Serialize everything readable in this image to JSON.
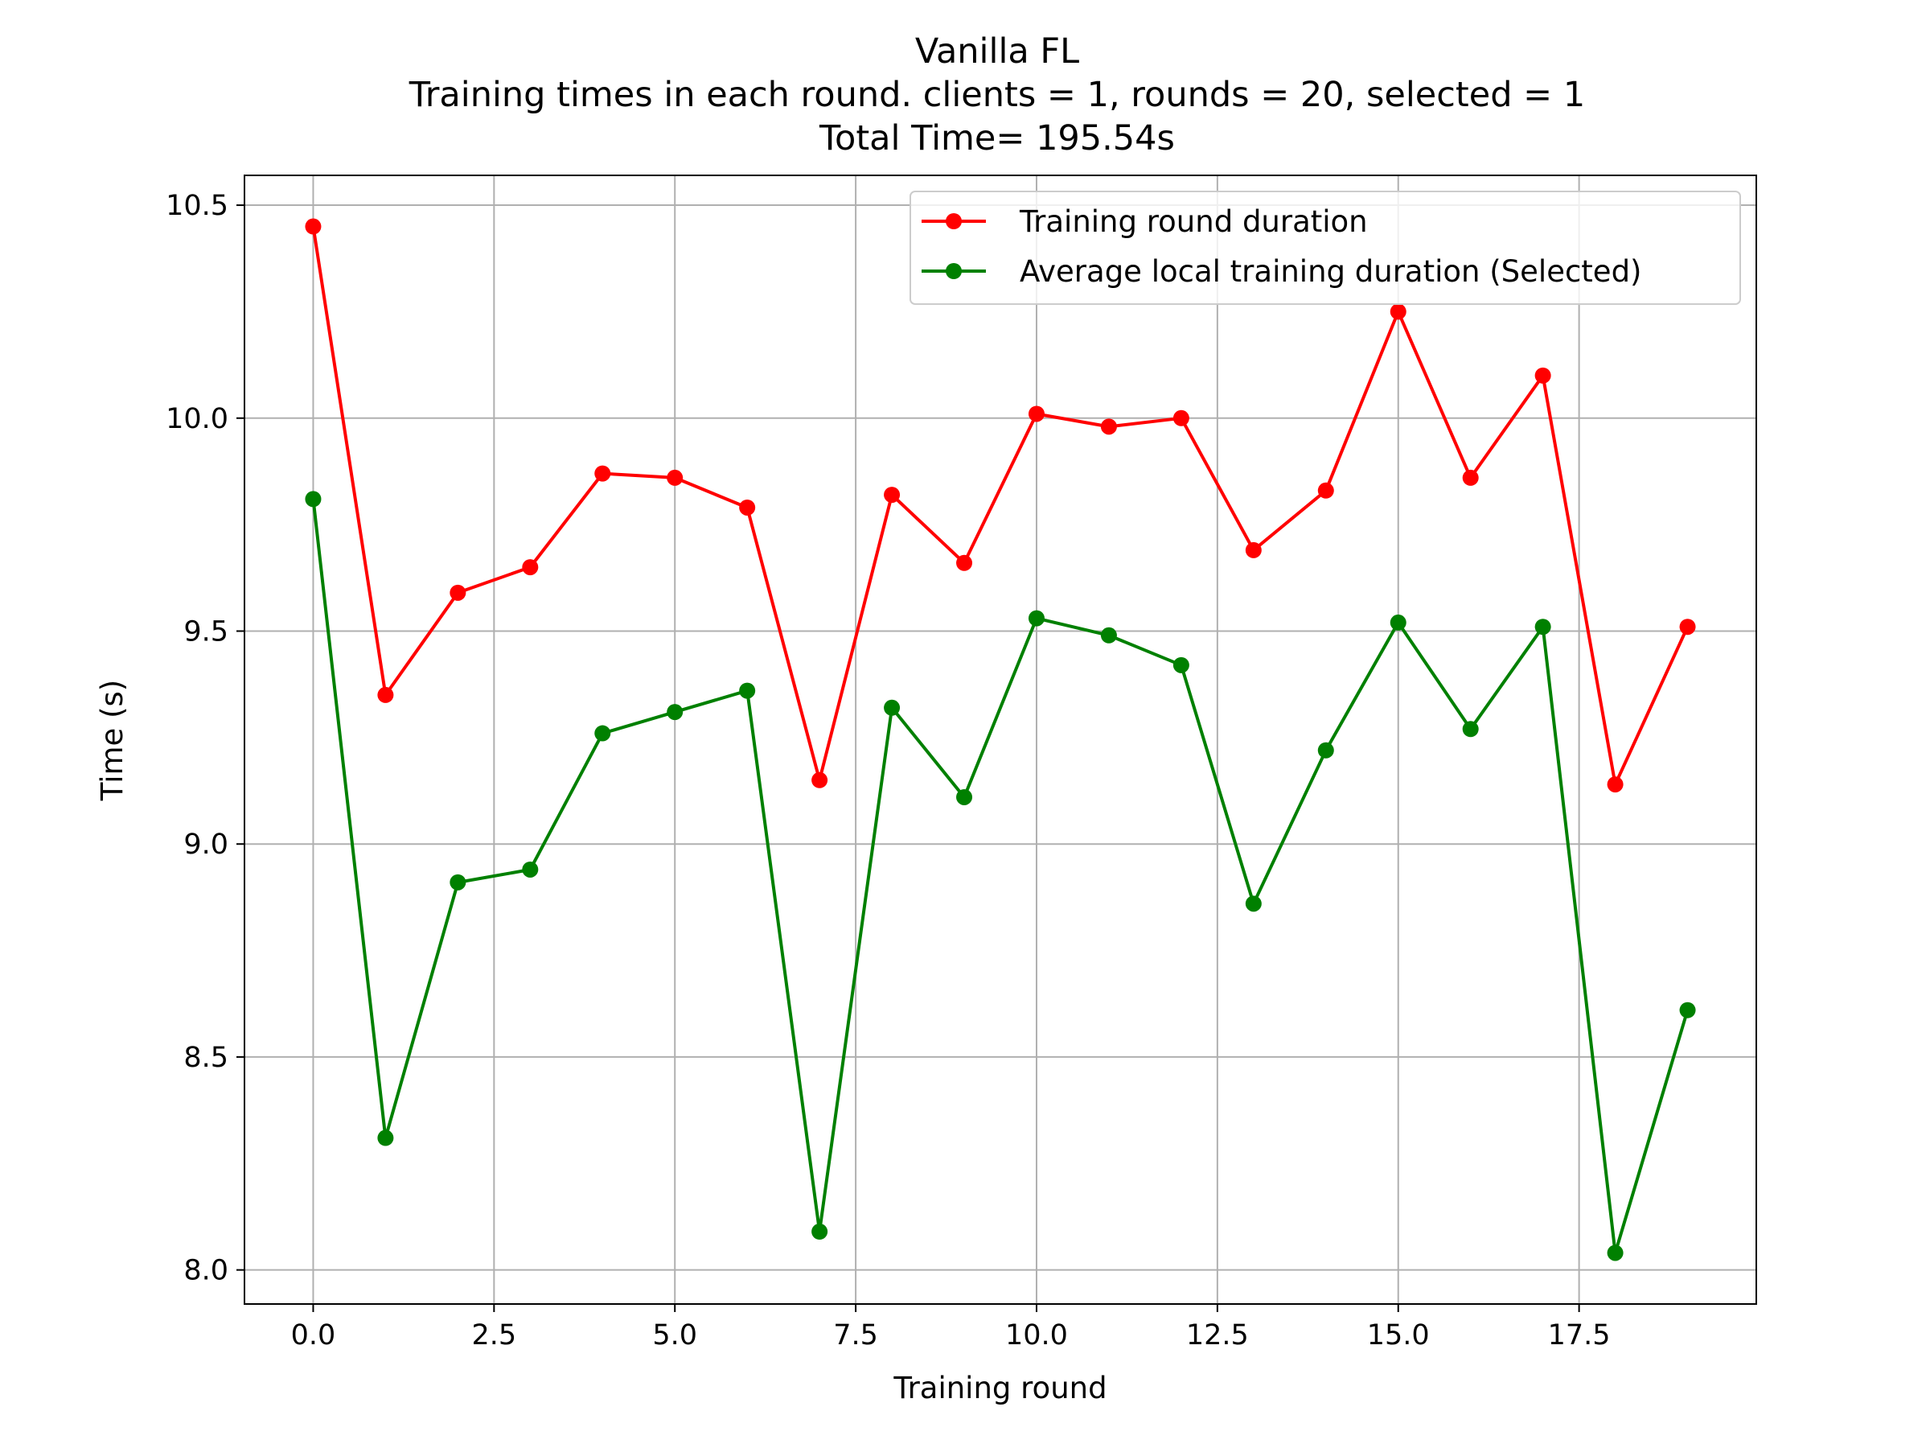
{
  "chart_data": {
    "type": "line",
    "title_lines": [
      "Vanilla FL",
      "Training times in each round. clients = 1, rounds = 20, selected = 1",
      "Total Time= 195.54s"
    ],
    "xlabel": "Training round",
    "ylabel": "Time (s)",
    "xlim": [
      -0.95,
      19.95
    ],
    "ylim": [
      7.92,
      10.57
    ],
    "xticks": [
      0,
      2.5,
      5,
      7.5,
      10,
      12.5,
      15,
      17.5
    ],
    "xtick_labels": [
      "0.0",
      "2.5",
      "5.0",
      "7.5",
      "10.0",
      "12.5",
      "15.0",
      "17.5"
    ],
    "yticks": [
      8.0,
      8.5,
      9.0,
      9.5,
      10.0,
      10.5
    ],
    "ytick_labels": [
      "8.0",
      "8.5",
      "9.0",
      "9.5",
      "10.0",
      "10.5"
    ],
    "grid": true,
    "legend_position": "top-right",
    "x": [
      0,
      1,
      2,
      3,
      4,
      5,
      6,
      7,
      8,
      9,
      10,
      11,
      12,
      13,
      14,
      15,
      16,
      17,
      18,
      19
    ],
    "series": [
      {
        "name": "Training round duration",
        "color": "#ff0000",
        "values": [
          10.45,
          9.35,
          9.59,
          9.65,
          9.87,
          9.86,
          9.79,
          9.15,
          9.82,
          9.66,
          10.01,
          9.98,
          10.0,
          9.69,
          9.83,
          10.25,
          9.86,
          10.1,
          9.14,
          9.51
        ]
      },
      {
        "name": "Average local training duration (Selected)",
        "color": "#008000",
        "values": [
          9.81,
          8.31,
          8.91,
          8.94,
          9.26,
          9.31,
          9.36,
          8.09,
          9.32,
          9.11,
          9.53,
          9.49,
          9.42,
          8.86,
          9.22,
          9.52,
          9.27,
          9.51,
          8.04,
          8.61
        ]
      }
    ]
  }
}
